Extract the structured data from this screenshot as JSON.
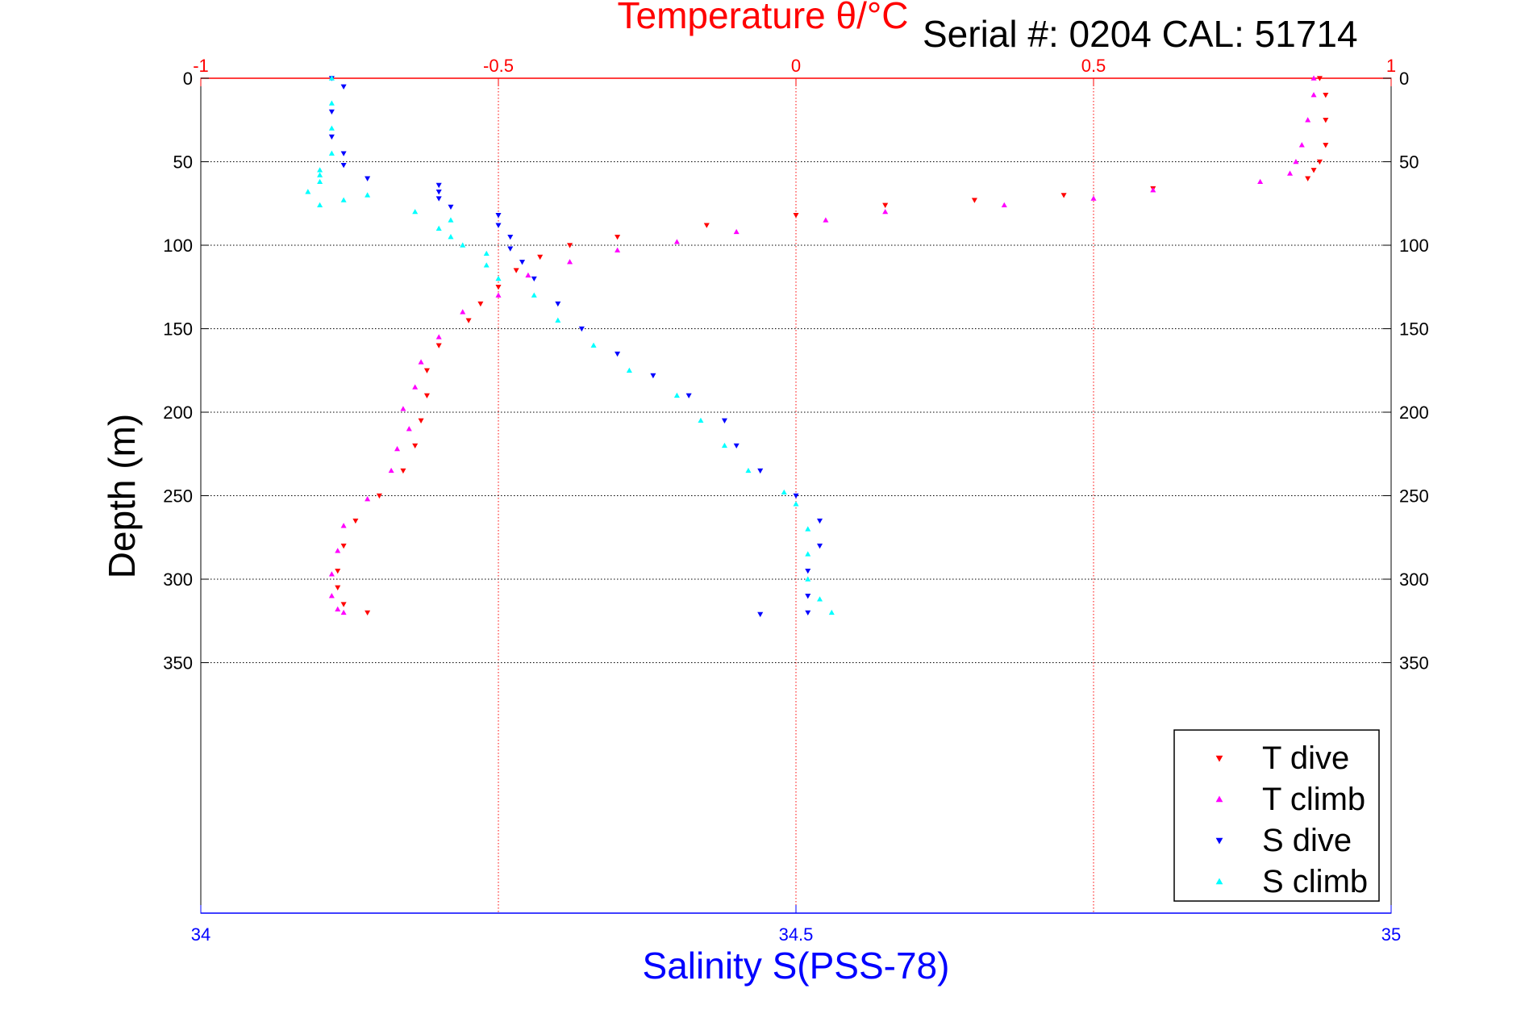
{
  "chart_data": {
    "type": "scatter",
    "serial_text": "Serial #: 0204  CAL: 51714",
    "top_axis": {
      "label": "Temperature θ/°C",
      "range": [
        -1,
        1
      ],
      "ticks": [
        -1,
        -0.5,
        0,
        0.5,
        1
      ],
      "tick_labels": [
        "-1",
        "-0.5",
        "0",
        "0.5",
        "1"
      ],
      "grid": true,
      "color": "#ff0000"
    },
    "bottom_axis": {
      "label": "Salinity S(PSS-78)",
      "range": [
        34,
        35
      ],
      "ticks": [
        34,
        34.5,
        35
      ],
      "tick_labels": [
        "34",
        "34.5",
        "35"
      ],
      "color": "#0000ff"
    },
    "y_axis": {
      "label": "Depth (m)",
      "range": [
        0,
        500
      ],
      "reversed": true,
      "ticks": [
        0,
        50,
        100,
        150,
        200,
        250,
        300,
        350
      ],
      "tick_labels": [
        "0",
        "50",
        "100",
        "150",
        "200",
        "250",
        "300",
        "350"
      ],
      "grid": true,
      "color": "#000000"
    },
    "legend": {
      "position": "bottom-right",
      "entries": [
        "T dive",
        "T climb",
        "S dive",
        "S climb"
      ]
    },
    "series": [
      {
        "name": "T dive",
        "axis": "temperature",
        "color": "#ff0000",
        "marker": "triangle-down",
        "points": [
          [
            0.88,
            0
          ],
          [
            0.89,
            10
          ],
          [
            0.89,
            25
          ],
          [
            0.89,
            40
          ],
          [
            0.88,
            50
          ],
          [
            0.87,
            55
          ],
          [
            0.86,
            60
          ],
          [
            0.6,
            66
          ],
          [
            0.45,
            70
          ],
          [
            0.3,
            73
          ],
          [
            0.15,
            76
          ],
          [
            0.0,
            82
          ],
          [
            -0.15,
            88
          ],
          [
            -0.3,
            95
          ],
          [
            -0.38,
            100
          ],
          [
            -0.43,
            107
          ],
          [
            -0.47,
            115
          ],
          [
            -0.5,
            125
          ],
          [
            -0.53,
            135
          ],
          [
            -0.55,
            145
          ],
          [
            -0.6,
            160
          ],
          [
            -0.62,
            175
          ],
          [
            -0.62,
            190
          ],
          [
            -0.63,
            205
          ],
          [
            -0.64,
            220
          ],
          [
            -0.66,
            235
          ],
          [
            -0.7,
            250
          ],
          [
            -0.74,
            265
          ],
          [
            -0.76,
            280
          ],
          [
            -0.77,
            295
          ],
          [
            -0.77,
            305
          ],
          [
            -0.76,
            315
          ],
          [
            -0.72,
            320
          ]
        ]
      },
      {
        "name": "T climb",
        "axis": "temperature",
        "color": "#ff00ff",
        "marker": "triangle-up",
        "points": [
          [
            0.87,
            0
          ],
          [
            0.87,
            10
          ],
          [
            0.86,
            25
          ],
          [
            0.85,
            40
          ],
          [
            0.84,
            50
          ],
          [
            0.83,
            57
          ],
          [
            0.78,
            62
          ],
          [
            0.6,
            67
          ],
          [
            0.5,
            72
          ],
          [
            0.35,
            76
          ],
          [
            0.15,
            80
          ],
          [
            0.05,
            85
          ],
          [
            -0.1,
            92
          ],
          [
            -0.2,
            98
          ],
          [
            -0.3,
            103
          ],
          [
            -0.38,
            110
          ],
          [
            -0.45,
            118
          ],
          [
            -0.5,
            130
          ],
          [
            -0.56,
            140
          ],
          [
            -0.6,
            155
          ],
          [
            -0.63,
            170
          ],
          [
            -0.64,
            185
          ],
          [
            -0.66,
            198
          ],
          [
            -0.65,
            210
          ],
          [
            -0.67,
            222
          ],
          [
            -0.68,
            235
          ],
          [
            -0.72,
            252
          ],
          [
            -0.76,
            268
          ],
          [
            -0.77,
            283
          ],
          [
            -0.78,
            297
          ],
          [
            -0.78,
            310
          ],
          [
            -0.77,
            318
          ],
          [
            -0.76,
            320
          ]
        ]
      },
      {
        "name": "S dive",
        "axis": "salinity",
        "color": "#0000ff",
        "marker": "triangle-down",
        "points": [
          [
            34.11,
            0
          ],
          [
            34.12,
            5
          ],
          [
            34.11,
            20
          ],
          [
            34.11,
            35
          ],
          [
            34.12,
            45
          ],
          [
            34.12,
            52
          ],
          [
            34.14,
            60
          ],
          [
            34.2,
            64
          ],
          [
            34.2,
            68
          ],
          [
            34.2,
            72
          ],
          [
            34.21,
            77
          ],
          [
            34.25,
            82
          ],
          [
            34.25,
            88
          ],
          [
            34.26,
            95
          ],
          [
            34.26,
            102
          ],
          [
            34.27,
            110
          ],
          [
            34.28,
            120
          ],
          [
            34.3,
            135
          ],
          [
            34.32,
            150
          ],
          [
            34.35,
            165
          ],
          [
            34.38,
            178
          ],
          [
            34.41,
            190
          ],
          [
            34.44,
            205
          ],
          [
            34.45,
            220
          ],
          [
            34.47,
            235
          ],
          [
            34.5,
            250
          ],
          [
            34.52,
            265
          ],
          [
            34.52,
            280
          ],
          [
            34.51,
            295
          ],
          [
            34.51,
            310
          ],
          [
            34.51,
            320
          ],
          [
            34.47,
            321
          ]
        ]
      },
      {
        "name": "S climb",
        "axis": "salinity",
        "color": "#00ffff",
        "marker": "triangle-up",
        "points": [
          [
            34.11,
            0
          ],
          [
            34.11,
            15
          ],
          [
            34.11,
            30
          ],
          [
            34.11,
            45
          ],
          [
            34.1,
            55
          ],
          [
            34.1,
            58
          ],
          [
            34.1,
            62
          ],
          [
            34.09,
            68
          ],
          [
            34.14,
            70
          ],
          [
            34.12,
            73
          ],
          [
            34.1,
            76
          ],
          [
            34.18,
            80
          ],
          [
            34.21,
            85
          ],
          [
            34.2,
            90
          ],
          [
            34.21,
            95
          ],
          [
            34.22,
            100
          ],
          [
            34.24,
            105
          ],
          [
            34.24,
            112
          ],
          [
            34.25,
            120
          ],
          [
            34.28,
            130
          ],
          [
            34.3,
            145
          ],
          [
            34.33,
            160
          ],
          [
            34.36,
            175
          ],
          [
            34.4,
            190
          ],
          [
            34.42,
            205
          ],
          [
            34.44,
            220
          ],
          [
            34.46,
            235
          ],
          [
            34.49,
            248
          ],
          [
            34.5,
            255
          ],
          [
            34.51,
            270
          ],
          [
            34.51,
            285
          ],
          [
            34.51,
            300
          ],
          [
            34.52,
            312
          ],
          [
            34.53,
            320
          ]
        ]
      }
    ]
  }
}
